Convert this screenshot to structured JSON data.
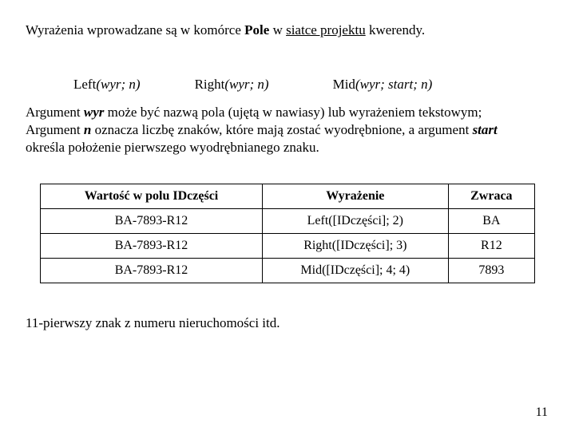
{
  "intro": {
    "pre": "Wyrażenia wprowadzane są w komórce ",
    "bold": "Pole",
    "mid": " w ",
    "underline": "siatce projektu",
    "post": " kwerendy."
  },
  "functions": {
    "left_name": "Left",
    "left_args": "(wyr; n)",
    "right_name": "Right",
    "right_args": "(wyr; n)",
    "mid_name": "Mid",
    "mid_args": "(wyr; start; n)"
  },
  "desc": {
    "l1a": "Argument ",
    "l1b": "wyr",
    "l1c": " może być nazwą pola (ujętą w nawiasy) lub wyrażeniem tekstowym;",
    "l2a": "Argument ",
    "l2b": "n",
    "l2c": " oznacza liczbę znaków, które mają zostać wyodrębnione, a argument ",
    "l2d": "start",
    "l3": "określa położenie pierwszego wyodrębnianego znaku."
  },
  "table": {
    "headers": [
      "Wartość w polu IDczęści",
      "Wyrażenie",
      "Zwraca"
    ],
    "rows": [
      [
        "BA-7893-R12",
        "Left([IDczęści]; 2)",
        "BA"
      ],
      [
        "BA-7893-R12",
        "Right([IDczęści]; 3)",
        "R12"
      ],
      [
        "BA-7893-R12",
        "Mid([IDczęści]; 4; 4)",
        "7893"
      ]
    ]
  },
  "footer": "11-pierwszy znak z numeru nieruchomości itd.",
  "page": "11"
}
